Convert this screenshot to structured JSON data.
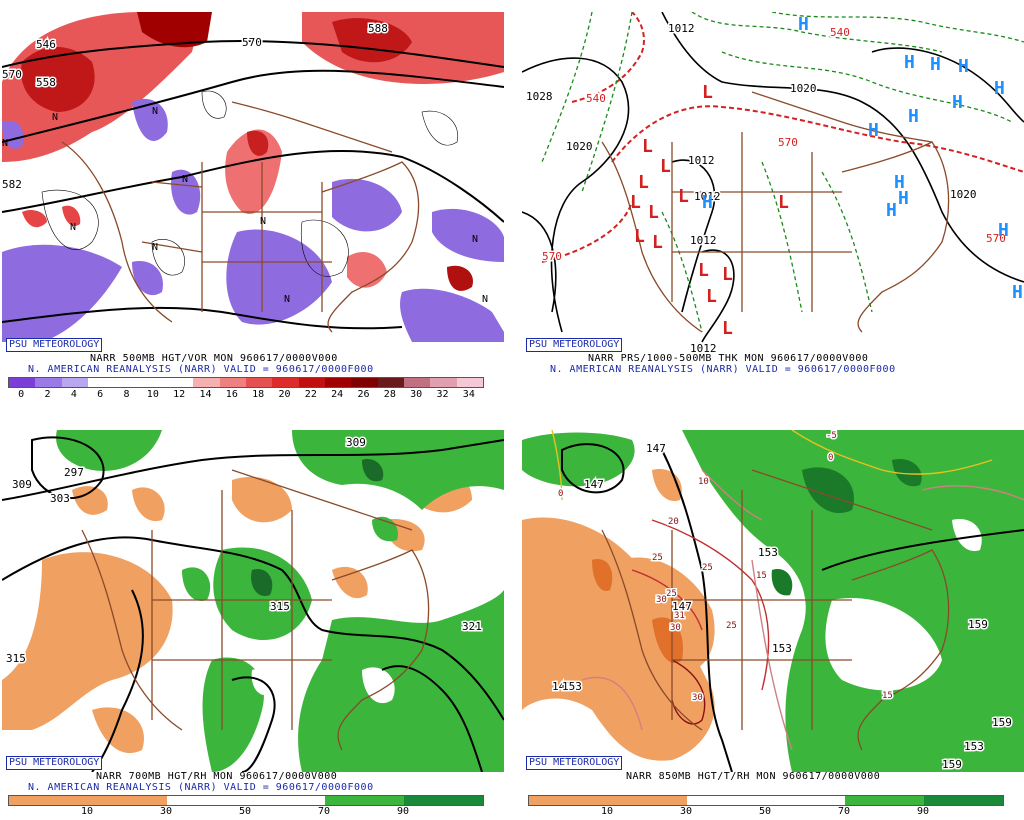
{
  "colors": {
    "coast": "#8a4a2a",
    "contour": "#000000",
    "red": "#d42020",
    "green": "#1a8a1a",
    "blue": "#1e90ff",
    "brand": "#1a2aa8"
  },
  "panels": {
    "tl": {
      "badge": "PSU METEOROLOGY",
      "caption1": "NARR 500MB HGT/VOR MON 960617/0000V000",
      "caption2": "N. AMERICAN REANALYSIS (NARR) VALID = 960617/0000F000",
      "contour_labels": [
        "546",
        "558",
        "570",
        "570",
        "582",
        "588"
      ],
      "vort_markers": [
        "N",
        "N",
        "N",
        "N",
        "N",
        "N",
        "N",
        "N",
        "N",
        "N"
      ],
      "colorbar_ticks": [
        "0",
        "2",
        "4",
        "6",
        "8",
        "10",
        "12",
        "14",
        "16",
        "18",
        "20",
        "22",
        "24",
        "26",
        "28",
        "30",
        "32",
        "34"
      ],
      "colorbar_colors": [
        "#7a3fd6",
        "#9a7ae6",
        "#b8a6ee",
        "#ffffff",
        "#ffffff",
        "#ffffff",
        "#ffffff",
        "#f5b0b0",
        "#ef8080",
        "#e65050",
        "#dd2a2a",
        "#c01010",
        "#a00000",
        "#800000",
        "#6a1a1a",
        "#c07080",
        "#e0a0b0",
        "#f5c8d5"
      ]
    },
    "tr": {
      "badge": "PSU METEOROLOGY",
      "caption1": "NARR PRS/1000-500MB THK MON 960617/0000V000",
      "caption2": "N. AMERICAN REANALYSIS (NARR) VALID = 960617/0000F000",
      "isobar_labels": [
        "1012",
        "1028",
        "1020",
        "1020",
        "1012",
        "1012",
        "1020",
        "1012",
        "1012"
      ],
      "thickness_labels": [
        "540",
        "540",
        "570",
        "570",
        "570"
      ],
      "highs": [
        "H",
        "H",
        "H",
        "H",
        "H",
        "H",
        "H",
        "H",
        "H",
        "H",
        "H",
        "H",
        "H",
        "H"
      ],
      "lows": [
        "L",
        "L",
        "L",
        "L",
        "L",
        "L",
        "L",
        "L",
        "L",
        "L",
        "L",
        "L",
        "L",
        "L"
      ]
    },
    "bl": {
      "badge": "PSU METEOROLOGY",
      "caption1": "NARR 700MB HGT/RH MON 960617/0000V000",
      "caption2": "N. AMERICAN REANALYSIS (NARR) VALID = 960617/0000F000",
      "contour_labels": [
        "297",
        "309",
        "303",
        "309",
        "315",
        "315",
        "321"
      ],
      "colorbar_ticks": [
        "10",
        "30",
        "50",
        "70",
        "90"
      ]
    },
    "br": {
      "badge": "PSU METEOROLOGY",
      "caption1": "NARR 850MB HGT/T/RH MON 960617/0000V000",
      "contour_labels": [
        "147",
        "147",
        "147",
        "147",
        "153",
        "153",
        "153",
        "159",
        "159",
        "153",
        "159"
      ],
      "temp_labels": [
        "-5",
        "0",
        "0",
        "10",
        "20",
        "25",
        "25",
        "25",
        "30",
        "31",
        "30",
        "25",
        "15",
        "15",
        "30"
      ],
      "colorbar_ticks": [
        "10",
        "30",
        "50",
        "70",
        "90"
      ]
    }
  }
}
